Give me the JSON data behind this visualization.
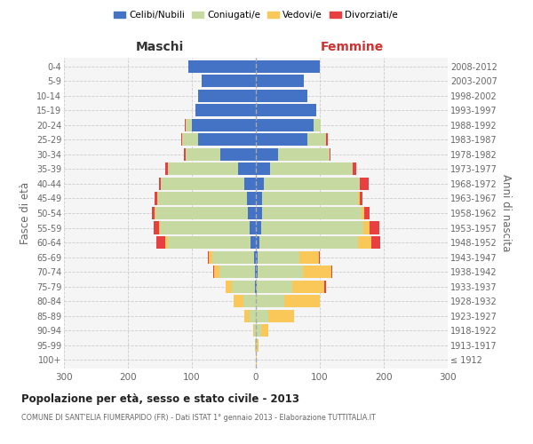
{
  "age_groups": [
    "100+",
    "95-99",
    "90-94",
    "85-89",
    "80-84",
    "75-79",
    "70-74",
    "65-69",
    "60-64",
    "55-59",
    "50-54",
    "45-49",
    "40-44",
    "35-39",
    "30-34",
    "25-29",
    "20-24",
    "15-19",
    "10-14",
    "5-9",
    "0-4"
  ],
  "birth_years": [
    "≤ 1912",
    "1913-1917",
    "1918-1922",
    "1923-1927",
    "1928-1932",
    "1933-1937",
    "1938-1942",
    "1943-1947",
    "1948-1952",
    "1953-1957",
    "1958-1962",
    "1963-1967",
    "1968-1972",
    "1973-1977",
    "1978-1982",
    "1983-1987",
    "1988-1992",
    "1993-1997",
    "1998-2002",
    "2003-2007",
    "2008-2012"
  ],
  "male": {
    "celibe": [
      0,
      0,
      0,
      0,
      0,
      2,
      2,
      3,
      8,
      10,
      12,
      14,
      18,
      28,
      55,
      90,
      100,
      95,
      90,
      85,
      105
    ],
    "coniugato": [
      0,
      1,
      3,
      10,
      20,
      35,
      55,
      65,
      130,
      140,
      145,
      140,
      130,
      110,
      55,
      25,
      10,
      0,
      0,
      0,
      0
    ],
    "vedovo": [
      0,
      0,
      1,
      8,
      15,
      10,
      8,
      5,
      3,
      2,
      1,
      0,
      0,
      0,
      0,
      0,
      0,
      0,
      0,
      0,
      0
    ],
    "divorziato": [
      0,
      0,
      0,
      0,
      0,
      0,
      2,
      2,
      15,
      8,
      5,
      5,
      3,
      3,
      2,
      2,
      1,
      0,
      0,
      0,
      0
    ]
  },
  "female": {
    "nubile": [
      0,
      0,
      0,
      0,
      0,
      2,
      3,
      3,
      5,
      8,
      10,
      10,
      12,
      22,
      35,
      80,
      90,
      95,
      80,
      75,
      100
    ],
    "coniugata": [
      0,
      2,
      8,
      20,
      45,
      55,
      70,
      65,
      155,
      160,
      155,
      150,
      150,
      130,
      80,
      30,
      12,
      0,
      0,
      0,
      0
    ],
    "vedova": [
      1,
      2,
      12,
      40,
      55,
      50,
      45,
      30,
      20,
      10,
      5,
      2,
      0,
      0,
      0,
      0,
      0,
      0,
      0,
      0,
      0
    ],
    "divorziata": [
      0,
      0,
      0,
      0,
      0,
      3,
      2,
      2,
      15,
      15,
      8,
      5,
      15,
      5,
      2,
      2,
      0,
      0,
      0,
      0,
      0
    ]
  },
  "colors": {
    "celibe": "#4472c4",
    "coniugato": "#c5d9a0",
    "vedovo": "#fac858",
    "divorziato": "#e84040"
  },
  "title": "Popolazione per età, sesso e stato civile - 2013",
  "subtitle": "COMUNE DI SANT'ELIA FIUMERAPIDO (FR) - Dati ISTAT 1° gennaio 2013 - Elaborazione TUTTITALIA.IT",
  "xlabel_left": "Maschi",
  "xlabel_right": "Femmine",
  "ylabel_left": "Fasce di età",
  "ylabel_right": "Anni di nascita",
  "xlim": 300,
  "bg_color": "#ffffff",
  "plot_bg": "#f5f5f5",
  "grid_color": "#cccccc",
  "legend_labels": [
    "Celibi/Nubili",
    "Coniugati/e",
    "Vedovi/e",
    "Divorziati/e"
  ]
}
